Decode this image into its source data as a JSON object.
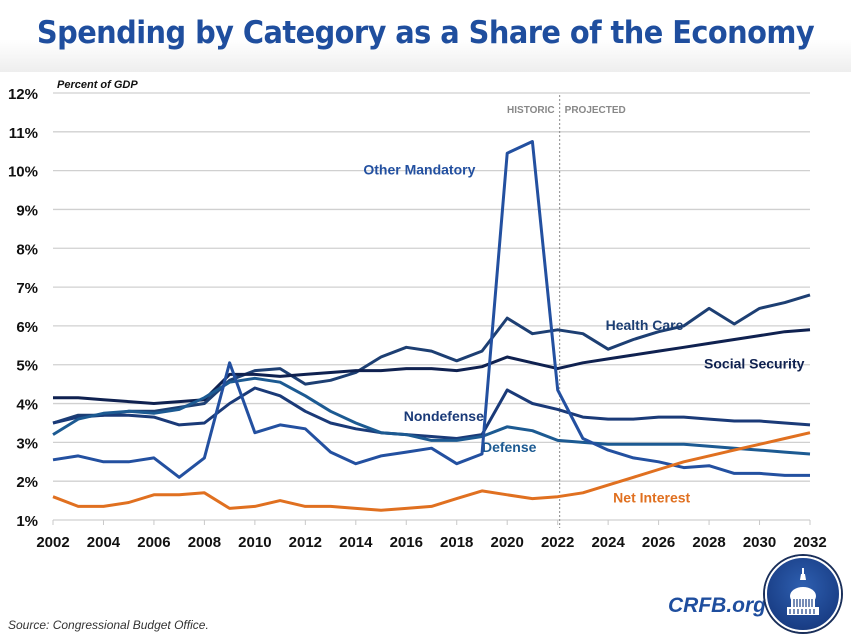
{
  "header": {
    "title": "Spending by Category as a Share of the Economy"
  },
  "footer": {
    "source": "Source: Congressional Budget Office.",
    "brand": "CRFB.org"
  },
  "logo": {
    "icon": "capitol-dome-icon"
  },
  "chart_data": {
    "type": "line",
    "title": "Spending by Category as a Share of the Economy",
    "ylabel": "Percent of GDP",
    "xlabel": "",
    "ylim": [
      1,
      12
    ],
    "xlim": [
      2002,
      2032
    ],
    "grid": true,
    "yticks": [
      "1%",
      "2%",
      "3%",
      "4%",
      "5%",
      "6%",
      "7%",
      "8%",
      "9%",
      "10%",
      "11%",
      "12%"
    ],
    "xticks": [
      "2002",
      "2004",
      "2006",
      "2008",
      "2010",
      "2012",
      "2014",
      "2016",
      "2018",
      "2020",
      "2022",
      "2024",
      "2026",
      "2028",
      "2030",
      "2032"
    ],
    "divider": {
      "year": 2022,
      "left_label": "HISTORIC",
      "right_label": "PROJECTED"
    },
    "x": [
      2002,
      2003,
      2004,
      2005,
      2006,
      2007,
      2008,
      2009,
      2010,
      2011,
      2012,
      2013,
      2014,
      2015,
      2016,
      2017,
      2018,
      2019,
      2020,
      2021,
      2022,
      2023,
      2024,
      2025,
      2026,
      2027,
      2028,
      2029,
      2030,
      2031,
      2032
    ],
    "series": [
      {
        "name": "Health Care",
        "color": "#1d3f73",
        "label_pos": [
          2023.9,
          5.9
        ],
        "values": [
          3.5,
          3.7,
          3.7,
          3.8,
          3.8,
          3.9,
          4.0,
          4.6,
          4.85,
          4.9,
          4.5,
          4.6,
          4.8,
          5.2,
          5.45,
          5.35,
          5.1,
          5.35,
          6.2,
          5.8,
          5.9,
          5.8,
          5.4,
          5.65,
          5.85,
          6.0,
          6.45,
          6.05,
          6.45,
          6.6,
          6.8
        ]
      },
      {
        "name": "Social Security",
        "color": "#0f2150",
        "label_pos": [
          2027.8,
          4.9
        ],
        "values": [
          4.15,
          4.15,
          4.1,
          4.05,
          4.0,
          4.05,
          4.1,
          4.75,
          4.75,
          4.7,
          4.75,
          4.8,
          4.85,
          4.85,
          4.9,
          4.9,
          4.85,
          4.95,
          5.2,
          5.05,
          4.9,
          5.05,
          5.15,
          5.25,
          5.35,
          5.45,
          5.55,
          5.65,
          5.75,
          5.85,
          5.9
        ]
      },
      {
        "name": "Nondefense",
        "color": "#1a3a78",
        "label_pos": [
          2015.9,
          3.55
        ],
        "values": [
          3.5,
          3.65,
          3.7,
          3.7,
          3.65,
          3.45,
          3.5,
          4.0,
          4.4,
          4.2,
          3.8,
          3.5,
          3.35,
          3.25,
          3.2,
          3.15,
          3.1,
          3.2,
          4.35,
          4.0,
          3.85,
          3.65,
          3.6,
          3.6,
          3.65,
          3.65,
          3.6,
          3.55,
          3.55,
          3.5,
          3.45
        ]
      },
      {
        "name": "Defense",
        "color": "#1c5a92",
        "label_pos": [
          2019.0,
          2.75
        ],
        "values": [
          3.2,
          3.6,
          3.75,
          3.8,
          3.75,
          3.85,
          4.15,
          4.55,
          4.65,
          4.55,
          4.2,
          3.8,
          3.5,
          3.25,
          3.2,
          3.05,
          3.05,
          3.15,
          3.4,
          3.3,
          3.05,
          3.0,
          2.95,
          2.95,
          2.95,
          2.95,
          2.9,
          2.85,
          2.8,
          2.75,
          2.7
        ]
      },
      {
        "name": "Other Mandatory",
        "color": "#2350a0",
        "label_pos": [
          2014.3,
          9.9
        ],
        "values": [
          2.55,
          2.65,
          2.5,
          2.5,
          2.6,
          2.1,
          2.6,
          5.05,
          3.25,
          3.45,
          3.35,
          2.75,
          2.45,
          2.65,
          2.75,
          2.85,
          2.45,
          2.7,
          10.45,
          10.75,
          4.35,
          3.1,
          2.8,
          2.6,
          2.5,
          2.35,
          2.4,
          2.2,
          2.2,
          2.15,
          2.15
        ]
      },
      {
        "name": "Net Interest",
        "color": "#e07020",
        "label_pos": [
          2024.2,
          1.45
        ],
        "values": [
          1.6,
          1.35,
          1.35,
          1.45,
          1.65,
          1.65,
          1.7,
          1.3,
          1.35,
          1.5,
          1.35,
          1.35,
          1.3,
          1.25,
          1.3,
          1.35,
          1.55,
          1.75,
          1.65,
          1.55,
          1.6,
          1.7,
          1.9,
          2.1,
          2.3,
          2.5,
          2.65,
          2.8,
          2.95,
          3.1,
          3.25
        ]
      }
    ]
  }
}
